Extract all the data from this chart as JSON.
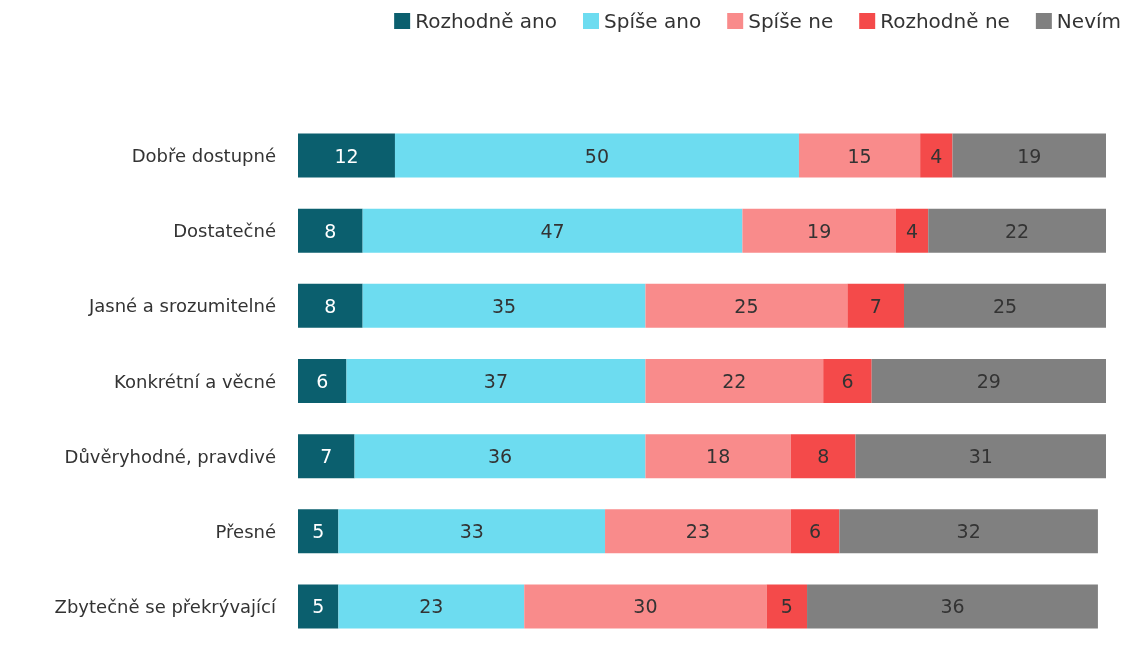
{
  "chart_data": {
    "type": "bar",
    "orientation": "horizontal",
    "stacked": true,
    "data_labels": true,
    "legend": "top right",
    "tick_labels": "y",
    "categories": [
      "Dobře dostupné",
      "Dostatečné",
      "Jasné a srozumitelné",
      "Konkrétní a věcné",
      "Důvěryhodné, pravdivé",
      "Přesné",
      "Zbytečně se překrývající"
    ],
    "series": [
      {
        "name": "Rozhodně ano",
        "color": "#0b5f6e",
        "values": [
          12,
          8,
          8,
          6,
          7,
          5,
          5
        ]
      },
      {
        "name": "Spíše ano",
        "color": "#6ddcf0",
        "values": [
          50,
          47,
          35,
          37,
          36,
          33,
          23
        ]
      },
      {
        "name": "Spíše ne",
        "color": "#f98b8b",
        "values": [
          15,
          19,
          25,
          22,
          18,
          23,
          30
        ]
      },
      {
        "name": "Rozhodně ne",
        "color": "#f44a4a",
        "values": [
          4,
          4,
          7,
          6,
          8,
          6,
          5
        ]
      },
      {
        "name": "Nevím",
        "color": "#808080",
        "values": [
          19,
          22,
          25,
          29,
          31,
          32,
          36
        ]
      }
    ]
  }
}
